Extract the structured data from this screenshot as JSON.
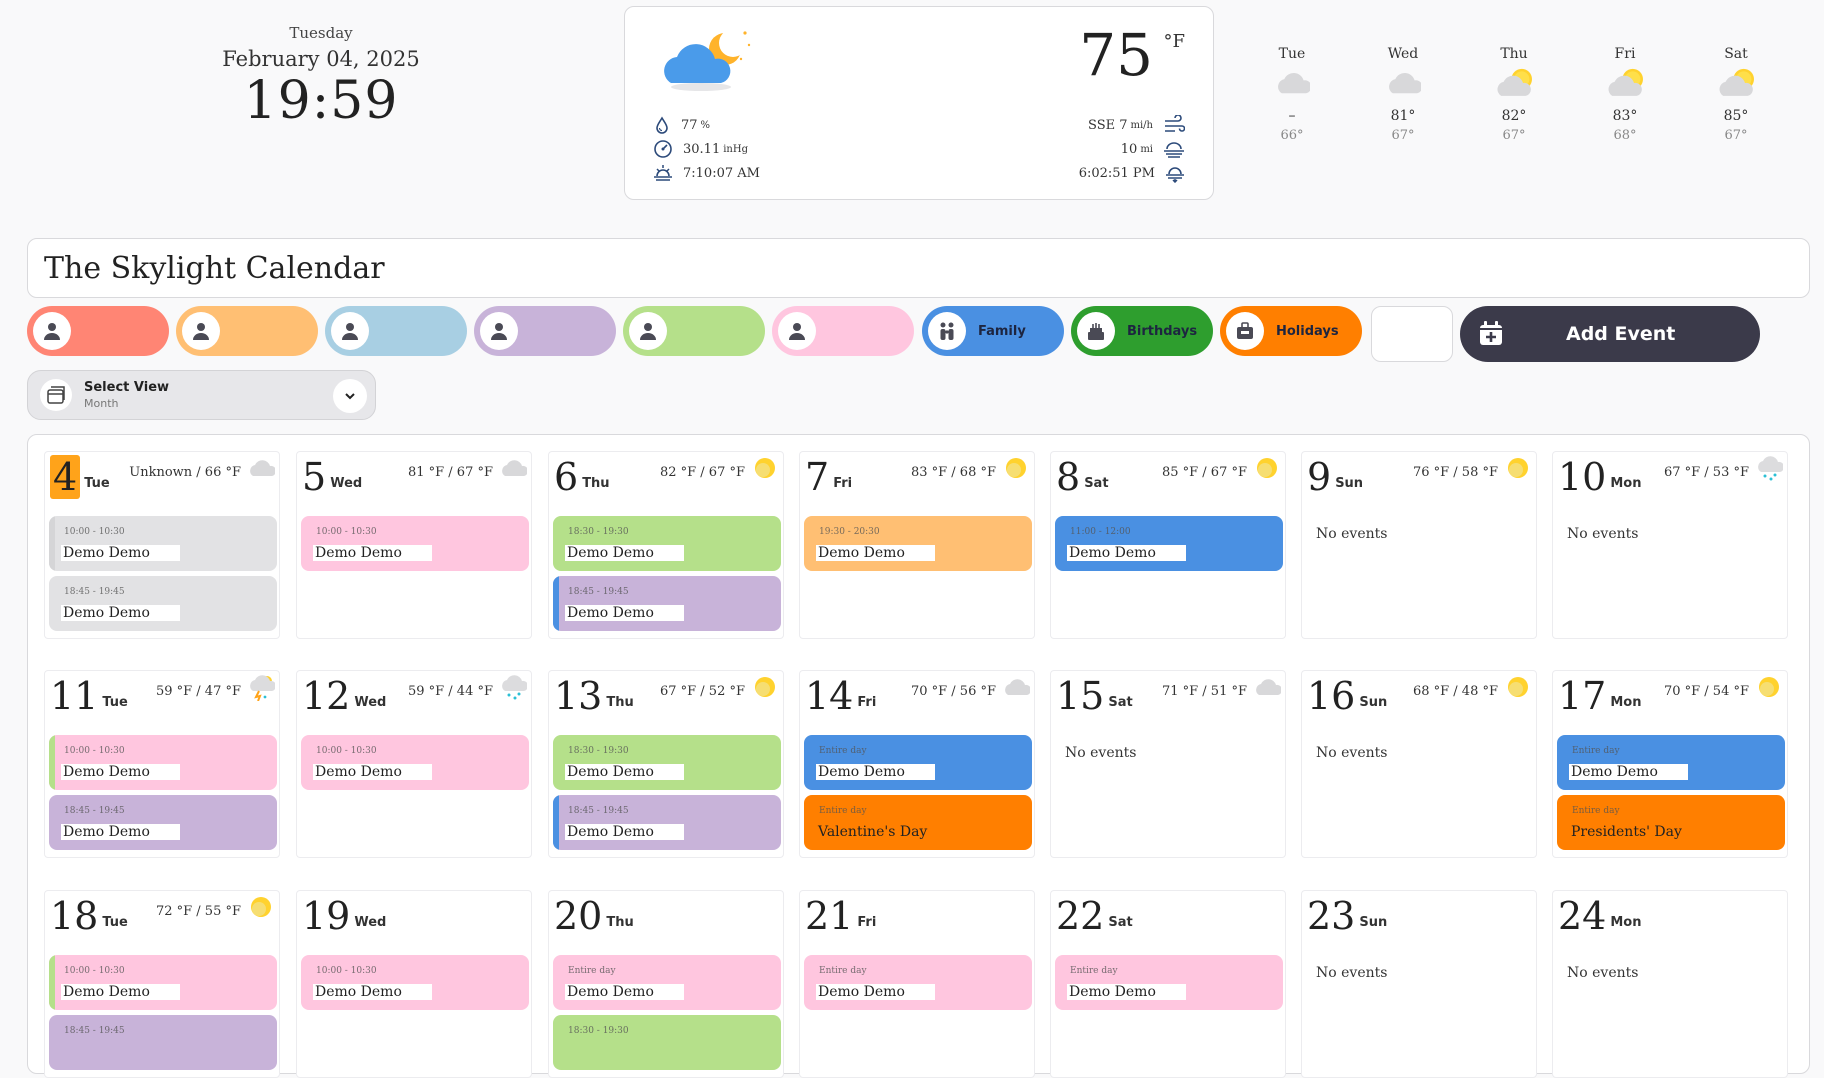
{
  "clock": {
    "weekday": "Tuesday",
    "date": "February 04, 2025",
    "time": "19:59"
  },
  "weather": {
    "icon": "cloud-moon-icon",
    "temp": "75",
    "unit": "°F",
    "humidity": "77",
    "humidity_unit": "%",
    "pressure": "30.11",
    "pressure_unit": "inHg",
    "sunrise": "7:10:07 AM",
    "wind": "SSE 7",
    "wind_unit": "mi/h",
    "visibility": "10",
    "visibility_unit": "mi",
    "sunset": "6:02:51 PM"
  },
  "forecast": [
    {
      "day": "Tue",
      "hi": "–",
      "lo": "66°",
      "icon": "cloudy-icon"
    },
    {
      "day": "Wed",
      "hi": "81°",
      "lo": "67°",
      "icon": "cloudy-icon"
    },
    {
      "day": "Thu",
      "hi": "82°",
      "lo": "67°",
      "icon": "partly-sunny-icon"
    },
    {
      "day": "Fri",
      "hi": "83°",
      "lo": "68°",
      "icon": "partly-sunny-icon"
    },
    {
      "day": "Sat",
      "hi": "85°",
      "lo": "67°",
      "icon": "partly-sunny-icon"
    }
  ],
  "title": "The Skylight Calendar",
  "filters": [
    {
      "label": "",
      "color": "#ff8574",
      "icon": "person-icon"
    },
    {
      "label": "",
      "color": "#ffbf73",
      "icon": "person-icon"
    },
    {
      "label": "",
      "color": "#a8cfe3",
      "icon": "person-icon"
    },
    {
      "label": "",
      "color": "#c8b3d9",
      "icon": "person-icon"
    },
    {
      "label": "",
      "color": "#b5e08a",
      "icon": "person-icon"
    },
    {
      "label": "",
      "color": "#ffc6df",
      "icon": "person-icon"
    },
    {
      "label": "Family",
      "color": "#4a90e2",
      "icon": "family-icon"
    },
    {
      "label": "Birthdays",
      "color": "#2e9e2e",
      "icon": "cake-icon"
    },
    {
      "label": "Holidays",
      "color": "#ff7f00",
      "icon": "suitcase-icon"
    }
  ],
  "add_event": "Add Event",
  "select_view": {
    "label": "Select View",
    "value": "Month"
  },
  "colors": {
    "gray": "#e2e2e4",
    "pink": "#ffc6df",
    "green": "#b5e08a",
    "purple": "#c8b3d9",
    "orange_light": "#ffbf73",
    "blue": "#4a90e2",
    "orange": "#ff7f00",
    "today": "#ffa31a"
  },
  "days": [
    {
      "num": "4",
      "name": "Tue",
      "temp": "Unknown / 66 °F",
      "icon": "cloudy-icon",
      "today": true,
      "events": [
        {
          "time": "10:00 - 10:30",
          "name": "Demo Demo",
          "color": "gray",
          "strip": "#d5d5d7"
        },
        {
          "time": "18:45 - 19:45",
          "name": "Demo Demo",
          "color": "gray",
          "strip": ""
        }
      ]
    },
    {
      "num": "5",
      "name": "Wed",
      "temp": "81 °F / 67 °F",
      "icon": "cloudy-icon",
      "events": [
        {
          "time": "10:00 - 10:30",
          "name": "Demo Demo",
          "color": "pink",
          "strip": ""
        }
      ]
    },
    {
      "num": "6",
      "name": "Thu",
      "temp": "82 °F / 67 °F",
      "icon": "sunny-icon",
      "events": [
        {
          "time": "18:30 - 19:30",
          "name": "Demo Demo",
          "color": "green",
          "strip": ""
        },
        {
          "time": "18:45 - 19:45",
          "name": "Demo Demo",
          "color": "purple",
          "strip": "#4a90e2"
        }
      ]
    },
    {
      "num": "7",
      "name": "Fri",
      "temp": "83 °F / 68 °F",
      "icon": "sunny-icon",
      "events": [
        {
          "time": "19:30 - 20:30",
          "name": "Demo Demo",
          "color": "orange_light",
          "strip": ""
        }
      ]
    },
    {
      "num": "8",
      "name": "Sat",
      "temp": "85 °F / 67 °F",
      "icon": "sunny-icon",
      "events": [
        {
          "time": "11:00 - 12:00",
          "name": "Demo Demo",
          "color": "blue",
          "strip": ""
        }
      ]
    },
    {
      "num": "9",
      "name": "Sun",
      "temp": "76 °F / 58 °F",
      "icon": "sunny-icon",
      "none": "No events",
      "events": []
    },
    {
      "num": "10",
      "name": "Mon",
      "temp": "67 °F / 53 °F",
      "icon": "rain-icon",
      "none": "No events",
      "events": []
    },
    {
      "num": "11",
      "name": "Tue",
      "temp": "59 °F / 47 °F",
      "icon": "storm-icon",
      "events": [
        {
          "time": "10:00 - 10:30",
          "name": "Demo Demo",
          "color": "pink",
          "strip": "#b5e08a"
        },
        {
          "time": "18:45 - 19:45",
          "name": "Demo Demo",
          "color": "purple",
          "strip": ""
        }
      ]
    },
    {
      "num": "12",
      "name": "Wed",
      "temp": "59 °F / 44 °F",
      "icon": "rain-icon",
      "events": [
        {
          "time": "10:00 - 10:30",
          "name": "Demo Demo",
          "color": "pink",
          "strip": ""
        }
      ]
    },
    {
      "num": "13",
      "name": "Thu",
      "temp": "67 °F / 52 °F",
      "icon": "sunny-icon",
      "events": [
        {
          "time": "18:30 - 19:30",
          "name": "Demo Demo",
          "color": "green",
          "strip": ""
        },
        {
          "time": "18:45 - 19:45",
          "name": "Demo Demo",
          "color": "purple",
          "strip": "#4a90e2"
        }
      ]
    },
    {
      "num": "14",
      "name": "Fri",
      "temp": "70 °F / 56 °F",
      "icon": "cloudy-icon",
      "events": [
        {
          "time": "Entire day",
          "name": "Demo Demo",
          "color": "blue",
          "strip": ""
        },
        {
          "time": "Entire day",
          "name": "Valentine's Day",
          "color": "orange",
          "strip": "",
          "plain": true
        }
      ]
    },
    {
      "num": "15",
      "name": "Sat",
      "temp": "71 °F / 51 °F",
      "icon": "cloudy-icon",
      "none": "No events",
      "events": []
    },
    {
      "num": "16",
      "name": "Sun",
      "temp": "68 °F / 48 °F",
      "icon": "sunny-icon",
      "none": "No events",
      "events": []
    },
    {
      "num": "17",
      "name": "Mon",
      "temp": "70 °F / 54 °F",
      "icon": "sunny-icon",
      "events": [
        {
          "time": "Entire day",
          "name": "Demo Demo",
          "color": "blue",
          "strip": ""
        },
        {
          "time": "Entire day",
          "name": "Presidents' Day",
          "color": "orange",
          "strip": "",
          "plain": true
        }
      ]
    },
    {
      "num": "18",
      "name": "Tue",
      "temp": "72 °F / 55 °F",
      "icon": "sunny-icon",
      "events": [
        {
          "time": "10:00 - 10:30",
          "name": "Demo Demo",
          "color": "pink",
          "strip": "#b5e08a"
        },
        {
          "time": "18:45 - 19:45",
          "name": "",
          "color": "purple",
          "strip": ""
        }
      ]
    },
    {
      "num": "19",
      "name": "Wed",
      "temp": "",
      "events": [
        {
          "time": "10:00 - 10:30",
          "name": "Demo Demo",
          "color": "pink",
          "strip": ""
        }
      ]
    },
    {
      "num": "20",
      "name": "Thu",
      "temp": "",
      "events": [
        {
          "time": "Entire day",
          "name": "Demo Demo",
          "color": "pink",
          "strip": ""
        },
        {
          "time": "18:30 - 19:30",
          "name": "",
          "color": "green",
          "strip": ""
        }
      ]
    },
    {
      "num": "21",
      "name": "Fri",
      "temp": "",
      "events": [
        {
          "time": "Entire day",
          "name": "Demo Demo",
          "color": "pink",
          "strip": ""
        }
      ]
    },
    {
      "num": "22",
      "name": "Sat",
      "temp": "",
      "events": [
        {
          "time": "Entire day",
          "name": "Demo Demo",
          "color": "pink",
          "strip": ""
        }
      ]
    },
    {
      "num": "23",
      "name": "Sun",
      "temp": "",
      "none": "No events",
      "events": []
    },
    {
      "num": "24",
      "name": "Mon",
      "temp": "",
      "none": "No events",
      "events": []
    }
  ]
}
